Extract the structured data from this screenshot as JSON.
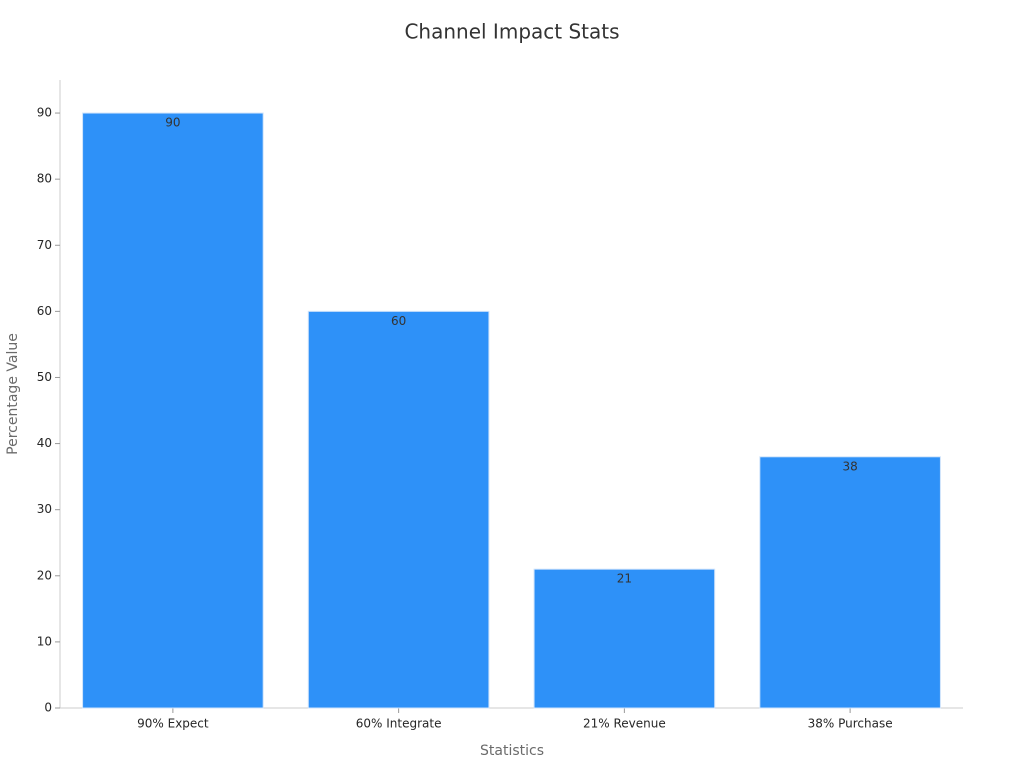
{
  "chart_data": {
    "type": "bar",
    "title": "Channel Impact Stats",
    "x_label": "Statistics",
    "y_label": "Percentage Value",
    "categories": [
      "90% Expect",
      "60% Integrate",
      "21% Revenue",
      "38% Purchase"
    ],
    "values": [
      90,
      60,
      21,
      38
    ],
    "color": "#2e91f8",
    "ylim": [
      0,
      95
    ],
    "yticks": [
      0,
      10,
      20,
      30,
      40,
      50,
      60,
      70,
      80,
      90
    ],
    "grid": false
  }
}
